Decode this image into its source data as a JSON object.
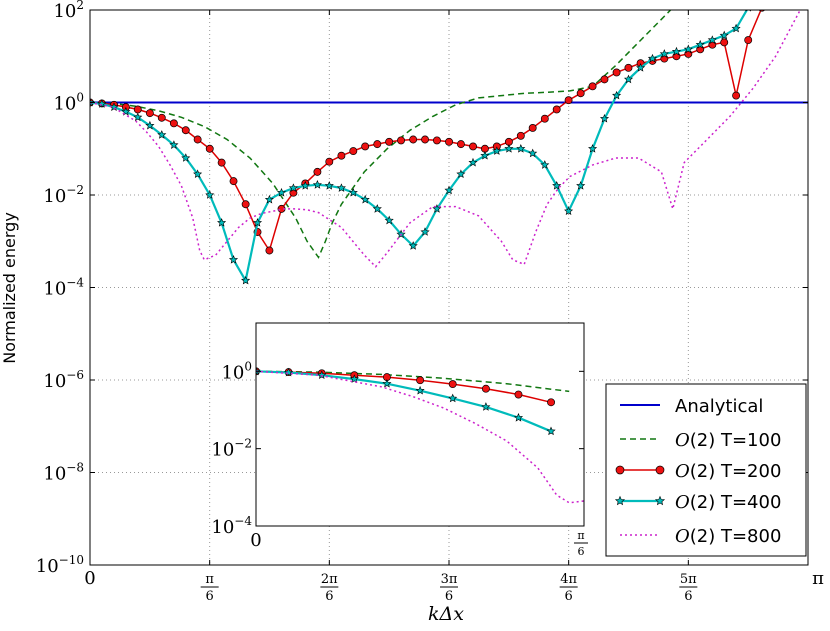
{
  "chart_data": {
    "type": "line",
    "title": "",
    "xlabel": "kΔx",
    "ylabel": "Normalized energy",
    "xlim": [
      0,
      3.14159
    ],
    "ylim_log10": [
      -10,
      2
    ],
    "yscale": "log",
    "grid": true,
    "legend_location": "lower-right",
    "x_ticks": [
      {
        "value": 0,
        "num": "0",
        "den": ""
      },
      {
        "value": 0.5236,
        "num": "π",
        "den": "6"
      },
      {
        "value": 1.0472,
        "num": "2π",
        "den": "6"
      },
      {
        "value": 1.5708,
        "num": "3π",
        "den": "6"
      },
      {
        "value": 2.0944,
        "num": "4π",
        "den": "6"
      },
      {
        "value": 2.618,
        "num": "5π",
        "den": "6"
      },
      {
        "value": 3.1416,
        "num": "π",
        "den": ""
      }
    ],
    "y_ticks": [
      {
        "exp": 2,
        "base": "10",
        "sup": "2"
      },
      {
        "exp": 0,
        "base": "10",
        "sup": "0"
      },
      {
        "exp": -2,
        "base": "10",
        "sup": "−2"
      },
      {
        "exp": -4,
        "base": "10",
        "sup": "−4"
      },
      {
        "exp": -6,
        "base": "10",
        "sup": "−6"
      },
      {
        "exp": -8,
        "base": "10",
        "sup": "−8"
      },
      {
        "exp": -10,
        "base": "10",
        "sup": "−10"
      }
    ],
    "series": [
      {
        "name": "Analytical",
        "label_prefix": "",
        "label_suffix": "Analytical",
        "color": "#0000cc",
        "dash": "",
        "marker": "none",
        "x": [
          0,
          3.14159
        ],
        "log10y": [
          0,
          0
        ]
      },
      {
        "name": "O(2) T=100",
        "label_prefix": "O",
        "label_suffix": "(2) T=100",
        "color": "#117711",
        "dash": "6,4",
        "marker": "none",
        "x": [
          0,
          0.1,
          0.2,
          0.3,
          0.4,
          0.5,
          0.6,
          0.7,
          0.8,
          0.9,
          0.95,
          1.0,
          1.03,
          1.06,
          1.1,
          1.2,
          1.3,
          1.4,
          1.5,
          1.6,
          1.7,
          1.8,
          1.9,
          2.0,
          2.1,
          2.2,
          2.3,
          2.4,
          2.5,
          2.6,
          2.7,
          2.8,
          2.85
        ],
        "log10y": [
          0,
          -0.02,
          -0.08,
          -0.18,
          -0.32,
          -0.52,
          -0.8,
          -1.2,
          -1.75,
          -2.5,
          -3.0,
          -3.35,
          -3.0,
          -2.6,
          -2.2,
          -1.5,
          -1.0,
          -0.6,
          -0.3,
          -0.05,
          0.1,
          0.15,
          0.2,
          0.22,
          0.25,
          0.35,
          0.8,
          1.3,
          1.8,
          2.3,
          2.6,
          2.9,
          3.1
        ]
      },
      {
        "name": "O(2) T=200",
        "label_prefix": "O",
        "label_suffix": "(2) T=200",
        "color": "#dd0000",
        "dash": "",
        "marker": "circle",
        "x": [
          0,
          0.052,
          0.105,
          0.157,
          0.209,
          0.262,
          0.314,
          0.367,
          0.419,
          0.471,
          0.524,
          0.576,
          0.628,
          0.681,
          0.733,
          0.785,
          0.838,
          0.89,
          0.942,
          0.995,
          1.047,
          1.1,
          1.152,
          1.204,
          1.257,
          1.309,
          1.361,
          1.414,
          1.466,
          1.518,
          1.571,
          1.623,
          1.676,
          1.728,
          1.78,
          1.833,
          1.885,
          1.937,
          1.99,
          2.042,
          2.094,
          2.147,
          2.199,
          2.251,
          2.304,
          2.356,
          2.409,
          2.461,
          2.513,
          2.566,
          2.618,
          2.67,
          2.723,
          2.775,
          2.827,
          2.88,
          2.94
        ],
        "log10y": [
          0,
          -0.02,
          -0.05,
          -0.1,
          -0.15,
          -0.23,
          -0.33,
          -0.45,
          -0.6,
          -0.8,
          -1.0,
          -1.3,
          -1.7,
          -2.2,
          -2.8,
          -3.2,
          -2.3,
          -1.95,
          -1.75,
          -1.5,
          -1.28,
          -1.15,
          -1.05,
          -0.95,
          -0.9,
          -0.85,
          -0.82,
          -0.8,
          -0.8,
          -0.82,
          -0.85,
          -0.9,
          -0.95,
          -1.0,
          -0.95,
          -0.85,
          -0.72,
          -0.55,
          -0.35,
          -0.15,
          0.05,
          0.2,
          0.35,
          0.5,
          0.65,
          0.75,
          0.85,
          0.9,
          0.95,
          1.0,
          1.05,
          1.15,
          1.25,
          1.3,
          0.15,
          1.35,
          2.05
        ]
      },
      {
        "name": "O(2) T=400",
        "label_prefix": "O",
        "label_suffix": "(2) T=400",
        "color": "#00bbbb",
        "dash": "",
        "marker": "star",
        "x": [
          0,
          0.052,
          0.105,
          0.157,
          0.209,
          0.262,
          0.314,
          0.367,
          0.419,
          0.471,
          0.524,
          0.576,
          0.628,
          0.681,
          0.733,
          0.785,
          0.838,
          0.89,
          0.942,
          0.995,
          1.047,
          1.1,
          1.152,
          1.204,
          1.257,
          1.309,
          1.361,
          1.414,
          1.466,
          1.518,
          1.571,
          1.623,
          1.676,
          1.728,
          1.78,
          1.833,
          1.885,
          1.937,
          1.99,
          2.042,
          2.094,
          2.147,
          2.199,
          2.251,
          2.304,
          2.356,
          2.409,
          2.461,
          2.513,
          2.566,
          2.618,
          2.67,
          2.723,
          2.775,
          2.827,
          2.88,
          2.94
        ],
        "log10y": [
          0,
          -0.03,
          -0.1,
          -0.2,
          -0.32,
          -0.5,
          -0.7,
          -0.92,
          -1.2,
          -1.55,
          -2.0,
          -2.6,
          -3.4,
          -3.85,
          -2.6,
          -2.1,
          -1.95,
          -1.85,
          -1.8,
          -1.78,
          -1.8,
          -1.85,
          -1.95,
          -2.1,
          -2.3,
          -2.55,
          -2.85,
          -3.1,
          -2.8,
          -2.3,
          -1.9,
          -1.55,
          -1.3,
          -1.15,
          -1.05,
          -1.0,
          -1.0,
          -1.1,
          -1.35,
          -1.8,
          -2.35,
          -1.8,
          -1.0,
          -0.35,
          0.15,
          0.5,
          0.75,
          0.95,
          1.05,
          1.1,
          1.15,
          1.25,
          1.35,
          1.45,
          1.6,
          2.05,
          2.6
        ]
      },
      {
        "name": "O(2) T=800",
        "label_prefix": "O",
        "label_suffix": "(2) T=800",
        "color": "#cc22cc",
        "dash": "2,3",
        "marker": "none",
        "x": [
          0,
          0.1,
          0.2,
          0.25,
          0.3,
          0.35,
          0.4,
          0.45,
          0.48,
          0.5,
          0.55,
          0.6,
          0.65,
          0.7,
          0.75,
          0.8,
          0.85,
          0.9,
          0.95,
          1.0,
          1.1,
          1.2,
          1.25,
          1.3,
          1.4,
          1.5,
          1.6,
          1.7,
          1.8,
          1.85,
          1.9,
          1.95,
          2.0,
          2.05,
          2.1,
          2.2,
          2.3,
          2.4,
          2.5,
          2.55,
          2.6,
          2.7,
          2.8,
          2.9,
          3.0,
          3.14
        ],
        "log10y": [
          0,
          -0.1,
          -0.4,
          -0.65,
          -0.95,
          -1.35,
          -1.8,
          -2.5,
          -3.2,
          -3.4,
          -3.3,
          -3.0,
          -2.7,
          -2.5,
          -2.4,
          -2.35,
          -2.3,
          -2.3,
          -2.32,
          -2.38,
          -2.7,
          -3.3,
          -3.55,
          -3.25,
          -2.6,
          -2.25,
          -2.25,
          -2.45,
          -3.0,
          -3.4,
          -3.5,
          -2.8,
          -2.2,
          -1.85,
          -1.6,
          -1.35,
          -1.2,
          -1.2,
          -1.5,
          -2.3,
          -1.3,
          -0.8,
          -0.3,
          0.3,
          1.0,
          2.3
        ]
      }
    ],
    "inset": {
      "xlim": [
        0,
        0.5236
      ],
      "ylim_log10": [
        -4,
        1.25
      ],
      "x_ticks": [
        {
          "value": 0,
          "num": "0",
          "den": ""
        },
        {
          "value": 0.5236,
          "num": "π",
          "den": "6"
        }
      ],
      "y_ticks": [
        {
          "exp": 0,
          "base": "10",
          "sup": "0"
        },
        {
          "exp": -2,
          "base": "10",
          "sup": "−2"
        },
        {
          "exp": -4,
          "base": "10",
          "sup": "−4"
        }
      ]
    }
  }
}
